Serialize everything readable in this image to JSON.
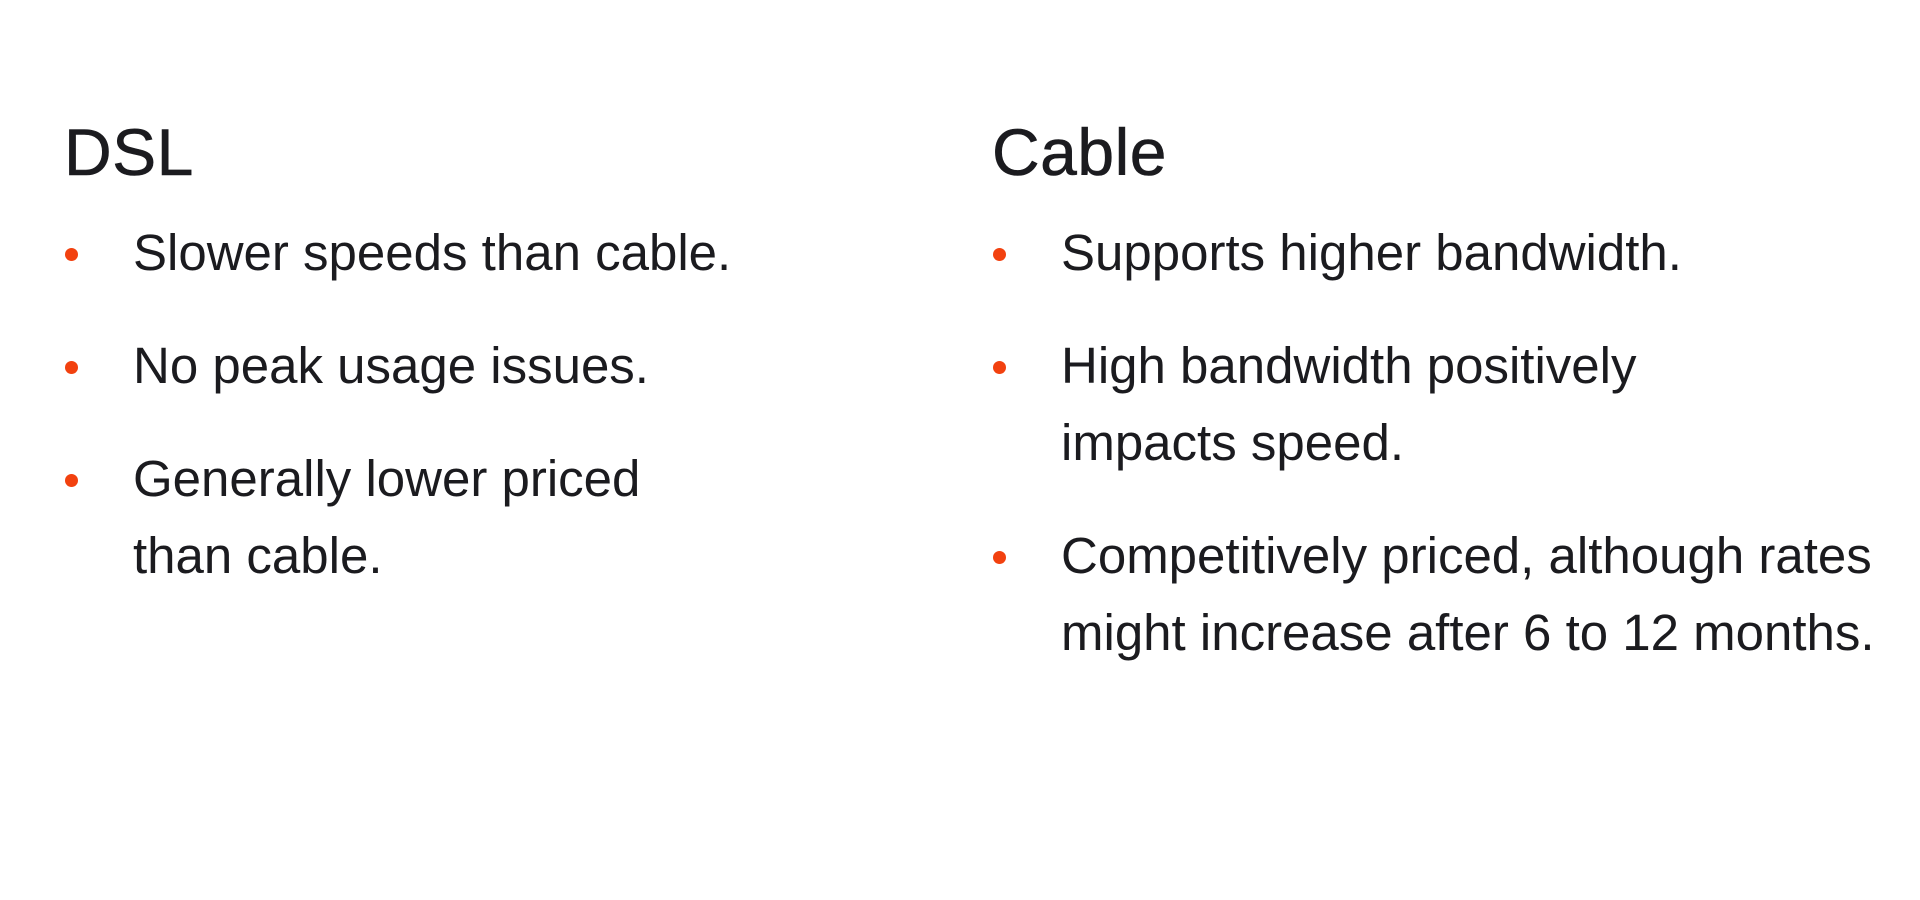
{
  "accent_color": "#f2410f",
  "columns": [
    {
      "title": "DSL",
      "items": [
        "Slower speeds than cable.",
        "No peak usage issues.",
        "Generally lower priced than cable."
      ]
    },
    {
      "title": "Cable",
      "items": [
        "Supports higher bandwidth.",
        "High bandwidth positively impacts speed.",
        "Competitively priced, although rates might increase after 6 to 12 months."
      ]
    }
  ]
}
